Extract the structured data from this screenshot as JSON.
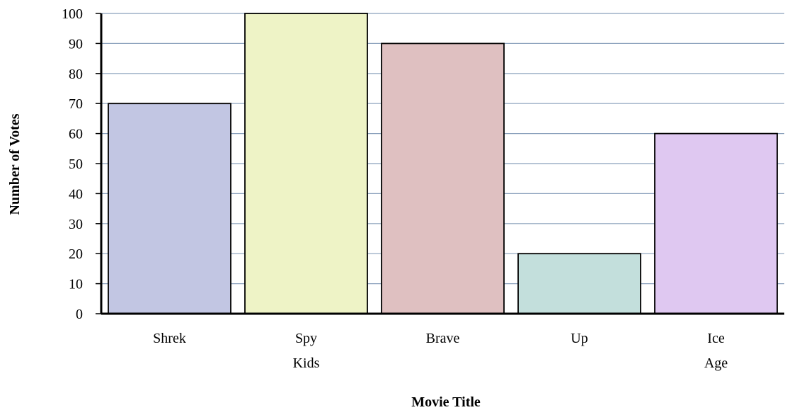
{
  "chart_data": {
    "type": "bar",
    "categories": [
      [
        "Shrek"
      ],
      [
        "Spy",
        "Kids"
      ],
      [
        "Brave"
      ],
      [
        "Up"
      ],
      [
        "Ice",
        "Age"
      ]
    ],
    "values": [
      70,
      100,
      90,
      20,
      60
    ],
    "bar_colors": [
      "#c2c6e3",
      "#eef3c6",
      "#dfc0c1",
      "#c3dfdc",
      "#dfc8f1"
    ],
    "xlabel": "Movie Title",
    "ylabel": "Number of Votes",
    "ylim": [
      0,
      100
    ],
    "ytick_step": 10,
    "grid": true,
    "grid_color": "#8aa0bc"
  }
}
